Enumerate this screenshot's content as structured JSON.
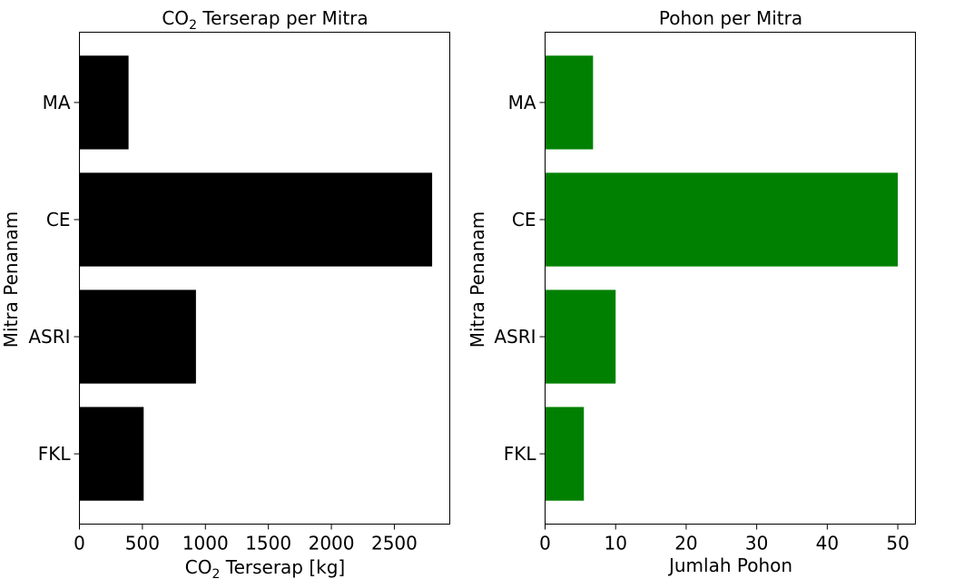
{
  "chart_data": [
    {
      "type": "bar",
      "orientation": "horizontal",
      "title": "CO2 Terserap per Mitra",
      "title_parts": {
        "main": "CO",
        "sub": "2",
        "rest": " Terserap per Mitra"
      },
      "xlabel": "CO2 Terserap [kg]",
      "xlabel_parts": {
        "main": "CO",
        "sub": "2",
        "rest": " Terserap [kg]"
      },
      "ylabel": "Mitra Penanam",
      "categories": [
        "FKL",
        "ASRI",
        "CE",
        "MA"
      ],
      "values": [
        510,
        925,
        2800,
        390
      ],
      "xlim": [
        0,
        2940
      ],
      "xticks": [
        0,
        500,
        1000,
        1500,
        2000,
        2500
      ],
      "color": "#000000",
      "grid": false
    },
    {
      "type": "bar",
      "orientation": "horizontal",
      "title": "Pohon per Mitra",
      "xlabel": "Jumlah Pohon",
      "ylabel": "Mitra Penanam",
      "categories": [
        "FKL",
        "ASRI",
        "CE",
        "MA"
      ],
      "values": [
        5.5,
        10,
        50,
        6.8
      ],
      "xlim": [
        0,
        52.5
      ],
      "xticks": [
        0,
        10,
        20,
        30,
        40,
        50
      ],
      "color": "#008000",
      "grid": false
    }
  ]
}
